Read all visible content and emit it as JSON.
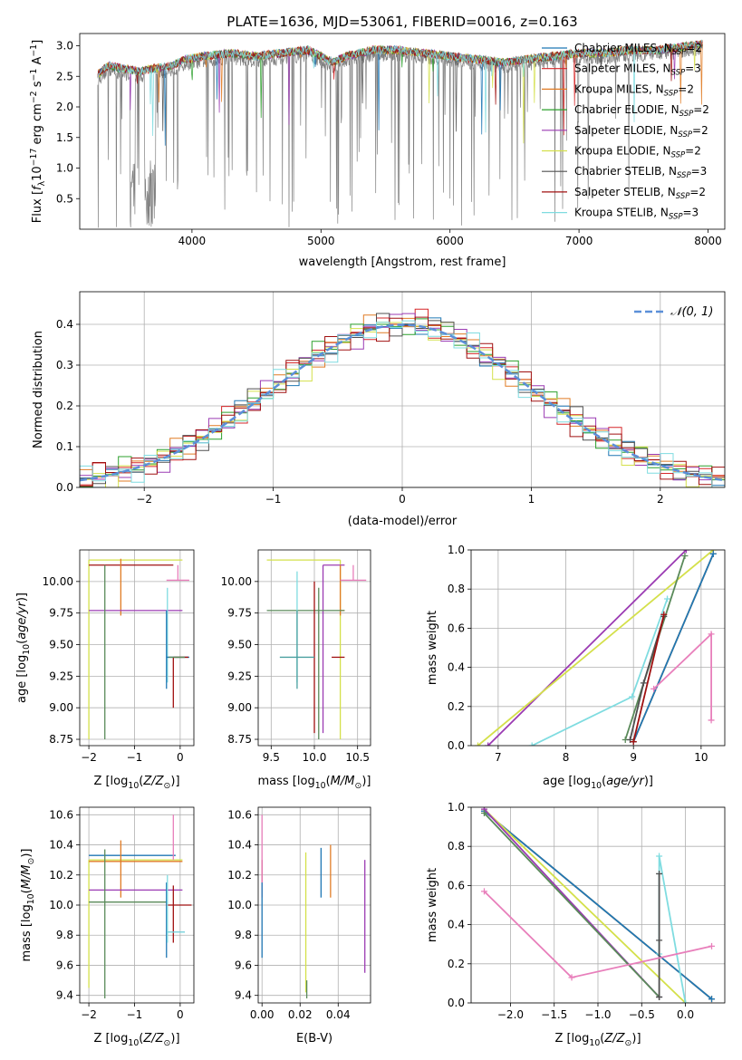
{
  "figure": {
    "title": "PLATE=1636, MJD=53061, FIBERID=0016, z=0.163"
  },
  "colors": {
    "Chabrier MILES": "#1f77b4",
    "Salpeter MILES": "#d62728",
    "Kroupa MILES": "#e07b24",
    "Chabrier ELODIE": "#2ca02c",
    "Salpeter ELODIE": "#9b3bb3",
    "Kroupa ELODIE": "#d4e04a",
    "Chabrier STELIB": "#505050",
    "Salpeter STELIB": "#a01010",
    "Kroupa STELIB": "#7fdce0",
    "pink": "#e87fbb",
    "olive": "#5a8a5a",
    "teal": "#4aa0a0",
    "normal_curve": "#5b8fd8"
  },
  "chart_data": [
    {
      "id": "spectrum",
      "type": "line",
      "title": "PLATE=1636, MJD=53061, FIBERID=0016, z=0.163",
      "xlabel": "wavelength [Angstrom, rest frame]",
      "ylabel": "Flux [f_λ 10^-17 erg cm^-2 s^-1 A^-1]",
      "xlim": [
        3130,
        8130
      ],
      "ylim": [
        0.0,
        3.2
      ],
      "xticks": [
        "4000",
        "5000",
        "6000",
        "7000",
        "8000"
      ],
      "yticks": [
        "0.5",
        "1.0",
        "1.5",
        "2.0",
        "2.5",
        "3.0"
      ],
      "grid": false,
      "legend_position": "upper-right",
      "legend": [
        "Chabrier MILES, N_SSP=2",
        "Salpeter MILES, N_SSP=3",
        "Kroupa MILES, N_SSP=2",
        "Chabrier ELODIE, N_SSP=2",
        "Salpeter ELODIE, N_SSP=2",
        "Kroupa ELODIE, N_SSP=2",
        "Chabrier STELIB, N_SSP=3",
        "Salpeter STELIB, N_SSP=2",
        "Kroupa STELIB, N_SSP=3"
      ],
      "continuum": {
        "x": [
          3270,
          3350,
          3450,
          3600,
          3700,
          3850,
          3950,
          4100,
          4300,
          4500,
          4700,
          4900,
          5100,
          5200,
          5400,
          5600,
          5800,
          6000,
          6200,
          6400,
          6600,
          6800,
          7000,
          7200,
          7400,
          7600,
          7800,
          7950
        ],
        "y": [
          2.45,
          2.6,
          2.55,
          2.5,
          2.55,
          2.6,
          2.7,
          2.75,
          2.8,
          2.75,
          2.8,
          2.85,
          2.65,
          2.75,
          2.85,
          2.85,
          2.8,
          2.75,
          2.7,
          2.65,
          2.7,
          2.75,
          2.8,
          2.8,
          2.85,
          2.85,
          2.9,
          2.95
        ]
      }
    },
    {
      "id": "residual-hist",
      "type": "line",
      "xlabel": "(data-model)/error",
      "ylabel": "Normed distribution",
      "xlim": [
        -2.5,
        2.5
      ],
      "ylim": [
        0.0,
        0.48
      ],
      "xticks": [
        "-2",
        "-1",
        "0",
        "1",
        "2"
      ],
      "yticks": [
        "0.0",
        "0.1",
        "0.2",
        "0.3",
        "0.4"
      ],
      "grid": true,
      "legend_position": "upper-right",
      "legend": [
        "𝒩(0, 1)"
      ],
      "bins": 50,
      "series": [
        {
          "model": "Chabrier MILES",
          "offsets": [
            0.002,
            -0.01,
            0.01,
            0.0,
            -0.005
          ]
        },
        {
          "model": "Salpeter MILES",
          "offsets": [
            -0.005,
            0.015,
            -0.01,
            0.008,
            0.004
          ]
        },
        {
          "model": "Kroupa MILES",
          "offsets": [
            0.008,
            0.0,
            0.012,
            -0.01,
            0.006
          ]
        },
        {
          "model": "Chabrier ELODIE",
          "offsets": [
            -0.008,
            0.01,
            0.0,
            0.012,
            -0.004
          ]
        },
        {
          "model": "Salpeter ELODIE",
          "offsets": [
            0.01,
            -0.012,
            0.006,
            -0.006,
            0.012
          ]
        },
        {
          "model": "Kroupa ELODIE",
          "offsets": [
            -0.002,
            0.006,
            -0.014,
            0.01,
            0.002
          ]
        },
        {
          "model": "Chabrier STELIB",
          "offsets": [
            0.004,
            -0.006,
            0.008,
            0.014,
            -0.01
          ]
        },
        {
          "model": "Salpeter STELIB",
          "offsets": [
            -0.01,
            0.012,
            0.004,
            -0.012,
            0.01
          ]
        },
        {
          "model": "Kroupa STELIB",
          "offsets": [
            0.012,
            -0.004,
            -0.008,
            0.004,
            -0.012
          ]
        }
      ]
    },
    {
      "id": "age-vs-Z",
      "type": "scatter",
      "xlabel": "Z [log10(Z/Z_sun)]",
      "ylabel": "age  [log10(age/yr)]",
      "xlim": [
        -2.2,
        0.3
      ],
      "ylim": [
        8.7,
        10.25
      ],
      "xticks": [
        "-2",
        "-1",
        "0"
      ],
      "yticks": [
        "8.75",
        "9.00",
        "9.25",
        "9.50",
        "9.75",
        "10.00"
      ],
      "grid": true
    },
    {
      "id": "age-vs-mass",
      "type": "scatter",
      "xlabel": "mass [log10(M/M_sun)]",
      "ylabel": "",
      "xlim": [
        9.35,
        10.65
      ],
      "ylim": [
        8.7,
        10.25
      ],
      "xticks": [
        "9.5",
        "10.0",
        "10.5"
      ],
      "yticks": [
        "8.75",
        "9.00",
        "9.25",
        "9.50",
        "9.75",
        "10.00"
      ],
      "grid": true
    },
    {
      "id": "massweight-vs-age",
      "type": "line",
      "xlabel": "age  [log10(age/yr)]",
      "ylabel": "mass weight",
      "xlim": [
        6.6,
        10.35
      ],
      "ylim": [
        0.0,
        1.0
      ],
      "xticks": [
        "7",
        "8",
        "9",
        "10"
      ],
      "yticks": [
        "0.0",
        "0.2",
        "0.4",
        "0.6",
        "0.8",
        "1.0"
      ],
      "grid": true,
      "series": [
        {
          "model": "Salpeter ELODIE",
          "x": [
            6.85,
            9.78
          ],
          "y": [
            0.0,
            1.0
          ]
        },
        {
          "model": "Kroupa ELODIE",
          "x": [
            6.7,
            10.18
          ],
          "y": [
            0.0,
            1.0
          ]
        },
        {
          "model": "Kroupa STELIB",
          "x": [
            7.5,
            8.98,
            9.5
          ],
          "y": [
            0.0,
            0.25,
            0.75
          ]
        },
        {
          "model": "Kroupa MILES",
          "x": [
            9.0,
            10.18
          ],
          "y": [
            0.02,
            0.98
          ]
        },
        {
          "model": "Chabrier MILES",
          "x": [
            9.0,
            10.18
          ],
          "y": [
            0.02,
            0.98
          ]
        },
        {
          "model": "olive",
          "x": [
            8.88,
            9.76
          ],
          "y": [
            0.03,
            0.97
          ]
        },
        {
          "model": "Chabrier STELIB",
          "x": [
            8.95,
            9.15,
            9.45
          ],
          "y": [
            0.03,
            0.32,
            0.66
          ]
        },
        {
          "model": "Salpeter STELIB",
          "x": [
            9.0,
            9.45
          ],
          "y": [
            0.02,
            0.67
          ]
        },
        {
          "model": "pink",
          "x": [
            9.3,
            10.15,
            10.15
          ],
          "y": [
            0.29,
            0.57,
            0.13
          ]
        }
      ]
    },
    {
      "id": "mass-vs-Z",
      "type": "scatter",
      "xlabel": "Z [log10(Z/Z_sun)]",
      "ylabel": "mass [log10(M/M_sun)]",
      "xlim": [
        -2.2,
        0.3
      ],
      "ylim": [
        9.35,
        10.65
      ],
      "xticks": [
        "-2",
        "-1",
        "0"
      ],
      "yticks": [
        "9.4",
        "9.6",
        "9.8",
        "10.0",
        "10.2",
        "10.4",
        "10.6"
      ],
      "grid": true
    },
    {
      "id": "mass-vs-ebv",
      "type": "scatter",
      "xlabel": "E(B-V)",
      "ylabel": "",
      "xlim": [
        -0.002,
        0.057
      ],
      "ylim": [
        9.35,
        10.65
      ],
      "xticks": [
        "0.00",
        "0.02",
        "0.04"
      ],
      "yticks": [
        "9.4",
        "9.6",
        "9.8",
        "10.0",
        "10.2",
        "10.4",
        "10.6"
      ],
      "grid": true
    },
    {
      "id": "massweight-vs-Z",
      "type": "line",
      "xlabel": "Z [log10(Z/Z_sun)]",
      "ylabel": "mass weight",
      "xlim": [
        -2.45,
        0.45
      ],
      "ylim": [
        0.0,
        1.0
      ],
      "xticks": [
        "-2.0",
        "-1.5",
        "-1.0",
        "-0.5",
        "0.0"
      ],
      "yticks": [
        "0.0",
        "0.2",
        "0.4",
        "0.6",
        "0.8",
        "1.0"
      ],
      "grid": true,
      "series": [
        {
          "model": "Kroupa MILES",
          "x": [
            -2.3,
            0.3
          ],
          "y": [
            0.98,
            0.02
          ]
        },
        {
          "model": "Chabrier MILES",
          "x": [
            -2.3,
            0.3
          ],
          "y": [
            0.98,
            0.02
          ]
        },
        {
          "model": "Kroupa ELODIE",
          "x": [
            -2.3,
            0.0
          ],
          "y": [
            0.99,
            0.0
          ]
        },
        {
          "model": "Salpeter ELODIE",
          "x": [
            -2.3,
            -0.3
          ],
          "y": [
            0.99,
            0.03
          ]
        },
        {
          "model": "olive",
          "x": [
            -2.3,
            -0.3
          ],
          "y": [
            0.97,
            0.03
          ]
        },
        {
          "model": "Kroupa STELIB",
          "x": [
            0.0,
            -0.3,
            -0.3
          ],
          "y": [
            0.0,
            0.75,
            0.25
          ]
        },
        {
          "model": "Chabrier STELIB",
          "x": [
            -0.3,
            -0.3,
            -0.3
          ],
          "y": [
            0.03,
            0.32,
            0.66
          ]
        },
        {
          "model": "pink",
          "x": [
            -2.3,
            -1.3,
            0.3
          ],
          "y": [
            0.57,
            0.13,
            0.29
          ]
        }
      ]
    }
  ],
  "errorbars": {
    "age-vs-Z": [
      {
        "c": "Kroupa ELODIE",
        "x": -2.0,
        "y": 10.17,
        "xl": -2.0,
        "xh": 0.05,
        "yl": 8.75,
        "yh": 10.17
      },
      {
        "c": "Salpeter STELIB",
        "x": -2.0,
        "y": 10.13,
        "xl": -2.0,
        "xh": -0.15,
        "yl": 10.13,
        "yh": 10.13
      },
      {
        "c": "Kroupa MILES",
        "x": -1.3,
        "y": 10.13,
        "xl": -1.3,
        "xh": -1.3,
        "yl": 9.73,
        "yh": 10.18
      },
      {
        "c": "Salpeter ELODIE",
        "x": -2.0,
        "y": 9.77,
        "xl": -2.0,
        "xh": 0.05,
        "yl": 9.77,
        "yh": 9.77
      },
      {
        "c": "olive",
        "x": -1.65,
        "y": 9.77,
        "xl": -1.65,
        "xh": -1.65,
        "yl": 8.75,
        "yh": 10.13
      },
      {
        "c": "pink",
        "x": -0.05,
        "y": 10.01,
        "xl": -0.3,
        "xh": 0.2,
        "yl": 10.01,
        "yh": 10.13
      },
      {
        "c": "Kroupa STELIB",
        "x": -0.28,
        "y": 9.77,
        "xl": -0.28,
        "xh": -0.28,
        "yl": 9.2,
        "yh": 9.95
      },
      {
        "c": "Chabrier MILES",
        "x": -0.3,
        "y": 9.4,
        "xl": -0.3,
        "xh": 0.2,
        "yl": 9.15,
        "yh": 9.77
      },
      {
        "c": "Salpeter STELIB",
        "x": -0.15,
        "y": 9.4,
        "xl": -0.15,
        "xh": 0.18,
        "yl": 9.0,
        "yh": 9.4
      },
      {
        "c": "olive",
        "x": -0.1,
        "y": 9.4,
        "xl": -0.25,
        "xh": 0.1,
        "yl": 9.4,
        "yh": 9.4
      }
    ],
    "age-vs-mass": [
      {
        "c": "Kroupa ELODIE",
        "x": 10.3,
        "y": 10.17,
        "xl": 9.45,
        "xh": 10.3,
        "yl": 8.75,
        "yh": 10.17
      },
      {
        "c": "Salpeter ELODIE",
        "x": 10.1,
        "y": 10.13,
        "xl": 10.1,
        "xh": 10.35,
        "yl": 8.8,
        "yh": 10.13
      },
      {
        "c": "Kroupa MILES",
        "x": 10.3,
        "y": 9.77,
        "xl": 10.3,
        "xh": 10.35,
        "yl": 9.73,
        "yh": 10.13
      },
      {
        "c": "pink",
        "x": 10.45,
        "y": 10.01,
        "xl": 10.3,
        "xh": 10.6,
        "yl": 10.01,
        "yh": 10.13
      },
      {
        "c": "olive",
        "x": 9.75,
        "y": 9.77,
        "xl": 9.45,
        "xh": 10.35,
        "yl": 9.77,
        "yh": 9.77
      },
      {
        "c": "Kroupa STELIB",
        "x": 9.8,
        "y": 9.77,
        "xl": 9.8,
        "xh": 9.8,
        "yl": 9.2,
        "yh": 10.08
      },
      {
        "c": "Salpeter STELIB",
        "x": 10.0,
        "y": 9.4,
        "xl": 10.0,
        "xh": 10.0,
        "yl": 8.8,
        "yh": 10.0
      },
      {
        "c": "teal",
        "x": 9.8,
        "y": 9.4,
        "xl": 9.6,
        "xh": 10.0,
        "yl": 9.15,
        "yh": 9.77
      },
      {
        "c": "olive",
        "x": 10.05,
        "y": 9.4,
        "xl": 10.05,
        "xh": 10.05,
        "yl": 8.75,
        "yh": 9.95
      },
      {
        "c": "Salpeter STELIB",
        "x": 10.2,
        "y": 9.4,
        "xl": 10.2,
        "xh": 10.35,
        "yl": 9.4,
        "yh": 9.4
      }
    ],
    "mass-vs-Z": [
      {
        "c": "Chabrier MILES",
        "x": -2.0,
        "y": 10.33,
        "xl": -2.0,
        "xh": -0.1,
        "yl": 10.33,
        "yh": 10.33
      },
      {
        "c": "Kroupa ELODIE",
        "x": -2.0,
        "y": 10.3,
        "xl": -2.0,
        "xh": 0.05,
        "yl": 9.45,
        "yh": 10.3
      },
      {
        "c": "Kroupa MILES",
        "x": -1.3,
        "y": 10.29,
        "xl": -2.0,
        "xh": 0.05,
        "yl": 10.05,
        "yh": 10.43
      },
      {
        "c": "Salpeter ELODIE",
        "x": -2.0,
        "y": 10.1,
        "xl": -2.0,
        "xh": 0.05,
        "yl": 10.1,
        "yh": 10.1
      },
      {
        "c": "olive",
        "x": -1.65,
        "y": 10.02,
        "xl": -2.0,
        "xh": -0.3,
        "yl": 9.38,
        "yh": 10.37
      },
      {
        "c": "pink",
        "x": -0.15,
        "y": 10.3,
        "xl": -0.15,
        "xh": -0.15,
        "yl": 10.3,
        "yh": 10.6
      },
      {
        "c": "Chabrier MILES",
        "x": -0.3,
        "y": 9.82,
        "xl": -0.3,
        "xh": 0.1,
        "yl": 9.65,
        "yh": 10.15
      },
      {
        "c": "Salpeter STELIB",
        "x": -0.15,
        "y": 10.0,
        "xl": -0.3,
        "xh": 0.25,
        "yl": 9.75,
        "yh": 10.13
      },
      {
        "c": "Kroupa STELIB",
        "x": -0.28,
        "y": 9.82,
        "xl": -0.28,
        "xh": 0.1,
        "yl": 9.75,
        "yh": 10.2
      }
    ],
    "mass-vs-ebv": [
      {
        "c": "Salpeter STELIB",
        "x": 0.0,
        "y": 10.2,
        "xl": 0.0,
        "xh": 0.0,
        "yl": 10.15,
        "yh": 10.3
      },
      {
        "c": "pink",
        "x": 0.0,
        "y": 10.3,
        "xl": 0.0,
        "xh": 0.0,
        "yl": 10.05,
        "yh": 10.6
      },
      {
        "c": "Chabrier MILES",
        "x": 0.0,
        "y": 9.9,
        "xl": 0.0,
        "xh": 0.0,
        "yl": 9.65,
        "yh": 10.15
      },
      {
        "c": "Kroupa ELODIE",
        "x": 0.023,
        "y": 9.9,
        "xl": 0.023,
        "xh": 0.023,
        "yl": 9.42,
        "yh": 10.35
      },
      {
        "c": "olive",
        "x": 0.0235,
        "y": 9.5,
        "xl": 0.0235,
        "xh": 0.0235,
        "yl": 9.38,
        "yh": 9.5
      },
      {
        "c": "Chabrier MILES",
        "x": 0.031,
        "y": 10.2,
        "xl": 0.031,
        "xh": 0.031,
        "yl": 10.05,
        "yh": 10.38
      },
      {
        "c": "Kroupa MILES",
        "x": 0.036,
        "y": 10.2,
        "xl": 0.036,
        "xh": 0.036,
        "yl": 10.05,
        "yh": 10.4
      },
      {
        "c": "Salpeter ELODIE",
        "x": 0.054,
        "y": 9.8,
        "xl": 0.054,
        "xh": 0.054,
        "yl": 9.55,
        "yh": 10.3
      }
    ]
  }
}
